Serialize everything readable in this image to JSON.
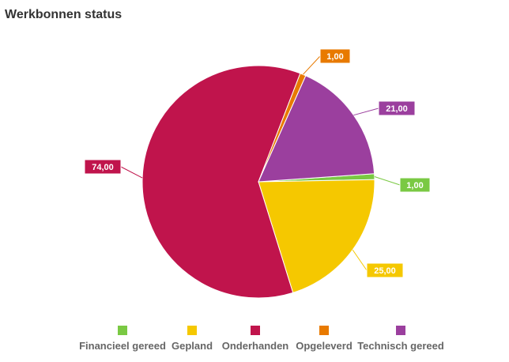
{
  "chart_data": {
    "type": "pie",
    "title": "Werkbonnen status",
    "categories": [
      "Financieel gereed",
      "Gepland",
      "Onderhanden",
      "Opgeleverd",
      "Technisch gereed"
    ],
    "values": [
      1,
      25,
      74,
      1,
      21
    ],
    "value_labels": [
      "1,00",
      "25,00",
      "74,00",
      "1,00",
      "21,00"
    ],
    "colors": [
      "#7ac943",
      "#f5c800",
      "#c0144c",
      "#e87a00",
      "#9b3f9e"
    ],
    "legend_position": "bottom"
  }
}
